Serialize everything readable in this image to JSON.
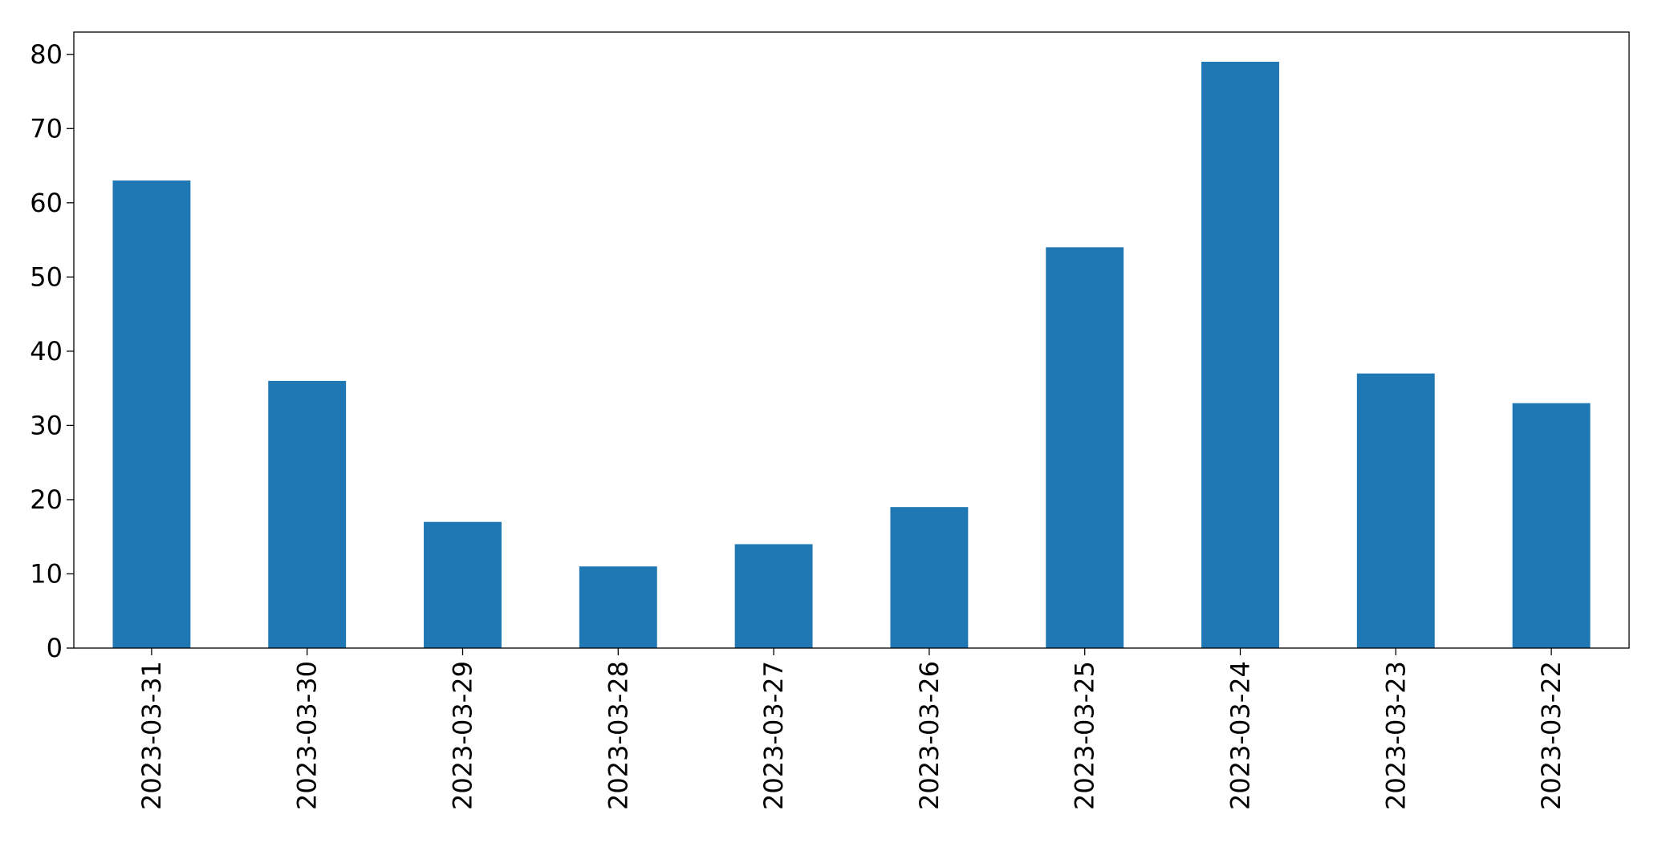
{
  "chart_data": {
    "type": "bar",
    "categories": [
      "2023-03-31",
      "2023-03-30",
      "2023-03-29",
      "2023-03-28",
      "2023-03-27",
      "2023-03-26",
      "2023-03-25",
      "2023-03-24",
      "2023-03-23",
      "2023-03-22"
    ],
    "values": [
      63,
      36,
      17,
      11,
      14,
      19,
      54,
      79,
      37,
      33
    ],
    "color": "#1f77b4",
    "ylim": [
      0,
      83
    ],
    "yticks": [
      0,
      10,
      20,
      30,
      40,
      50,
      60,
      70,
      80
    ],
    "grid": false
  }
}
